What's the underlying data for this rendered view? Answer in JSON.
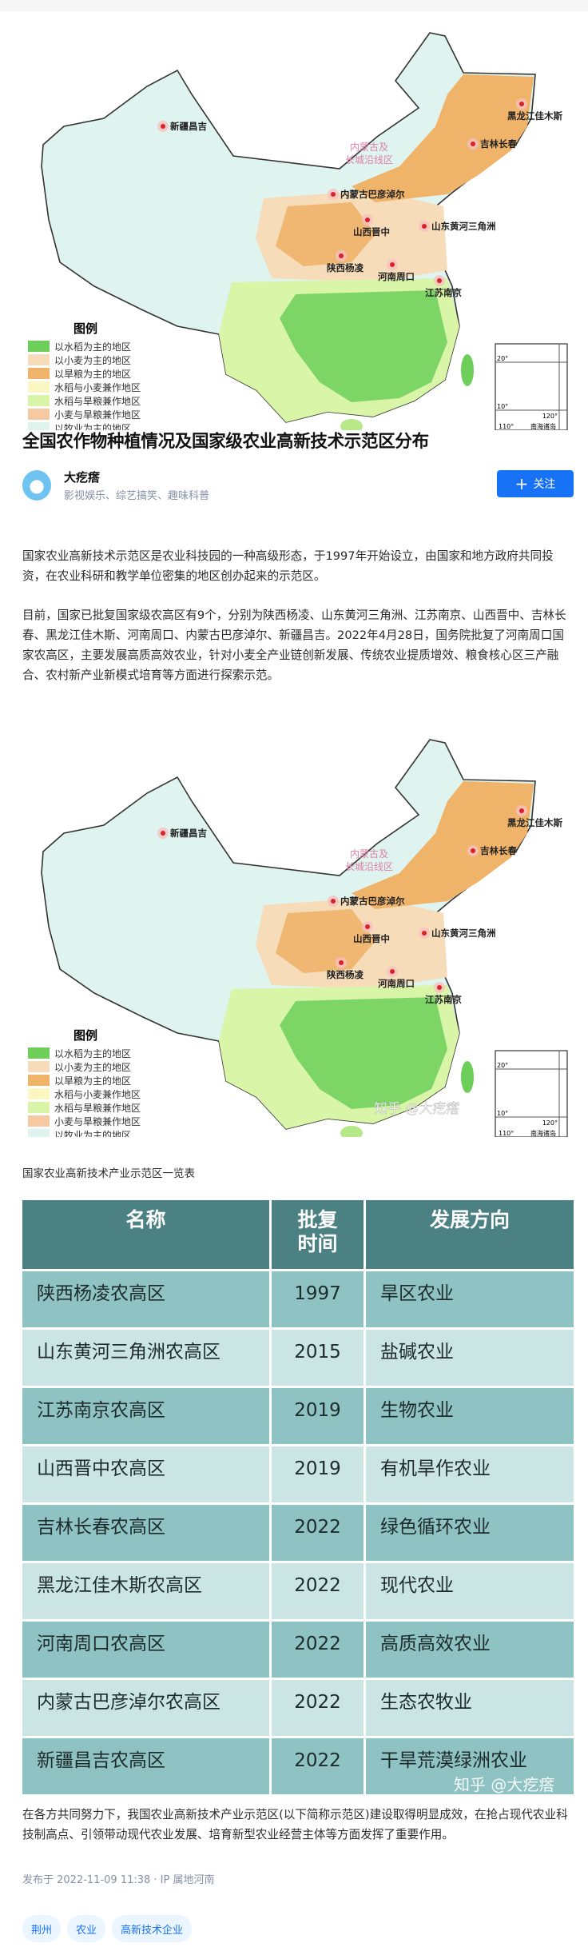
{
  "map": {
    "legend_title": "图例",
    "legend": [
      {
        "label": "以水稻为主的地区",
        "color": "#6dcf5a"
      },
      {
        "label": "以小麦为主的地区",
        "color": "#f6dcb8"
      },
      {
        "label": "以旱粮为主的地区",
        "color": "#f0b36a"
      },
      {
        "label": "水稻与小麦兼作地区",
        "color": "#fbf7c0"
      },
      {
        "label": "水稻与旱粮兼作地区",
        "color": "#d8f5a8"
      },
      {
        "label": "小麦与旱粮兼作地区",
        "color": "#f7c9a3"
      },
      {
        "label": "以牧业为主的地区",
        "color": "#dff4ef"
      }
    ],
    "sites": [
      {
        "label": "新疆昌吉"
      },
      {
        "label": "黑龙江佳木斯"
      },
      {
        "label": "吉林长春"
      },
      {
        "label": "内蒙古巴彦淖尔"
      },
      {
        "label": "山西晋中"
      },
      {
        "label": "山东黄河三角洲"
      },
      {
        "label": "陕西杨凌"
      },
      {
        "label": "河南周口"
      },
      {
        "label": "江苏南京"
      }
    ],
    "region_label": [
      "内蒙古及",
      "长城沿线区"
    ],
    "inset": {
      "lat1": "20°",
      "lat2": "10°",
      "lon1": "120°",
      "lon2": "110°",
      "name": "南海诸岛"
    },
    "watermark": "知乎 @大疙瘩"
  },
  "article": {
    "title": "全国农作物种植情况及国家级农业高新技术示范区分布",
    "author": {
      "name": "大疙瘩",
      "desc": "影视娱乐、综艺搞笑、趣味科普"
    },
    "follow_label": "关注",
    "para1": "国家农业高新技术示范区是农业科技园的一种高级形态，于1997年开始设立，由国家和地方政府共同投资，在农业科研和教学单位密集的地区创办起来的示范区。",
    "para2": "目前，国家已批复国家级农高区有9个，分别为陕西杨凌、山东黄河三角洲、江苏南京、山西晋中、吉林长春、黑龙江佳木斯、河南周口、内蒙古巴彦淖尔、新疆昌吉。2022年4月28日，国务院批复了河南周口国家农高区，主要发展高质高效农业，针对小麦全产业链创新发展、传统农业提质增效、粮食核心区三产融合、农村新产业新模式培育等方面进行探索示范。",
    "caption": "国家农业高新技术产业示范区一览表",
    "para3": "在各方共同努力下，我国农业高新技术产业示范区(以下简称示范区)建设取得明显成效，在抢占现代农业科技制高点、引领带动现代农业发展、培育新型农业经营主体等方面发挥了重要作用。",
    "date": "发布于 2022-11-09 11:38 · IP 属地河南",
    "tags": [
      "荆州",
      "农业",
      "高新技术企业"
    ]
  },
  "table": {
    "headers": [
      "名称",
      "批复时间",
      "发展方向"
    ],
    "rows": [
      [
        "陕西杨凌农高区",
        "1997",
        "旱区农业"
      ],
      [
        "山东黄河三角洲农高区",
        "2015",
        "盐碱农业"
      ],
      [
        "江苏南京农高区",
        "2019",
        "生物农业"
      ],
      [
        "山西晋中农高区",
        "2019",
        "有机旱作农业"
      ],
      [
        "吉林长春农高区",
        "2022",
        "绿色循环农业"
      ],
      [
        "黑龙江佳木斯农高区",
        "2022",
        "现代农业"
      ],
      [
        "河南周口农高区",
        "2022",
        "高质高效农业"
      ],
      [
        "内蒙古巴彦淖尔农高区",
        "2022",
        "生态农牧业"
      ],
      [
        "新疆昌吉农高区",
        "2022",
        "干旱荒漠绿洲农业"
      ]
    ],
    "header_color": "#4b8183",
    "row_dark": "#8fc2c3",
    "row_light": "#cbe4e4"
  }
}
